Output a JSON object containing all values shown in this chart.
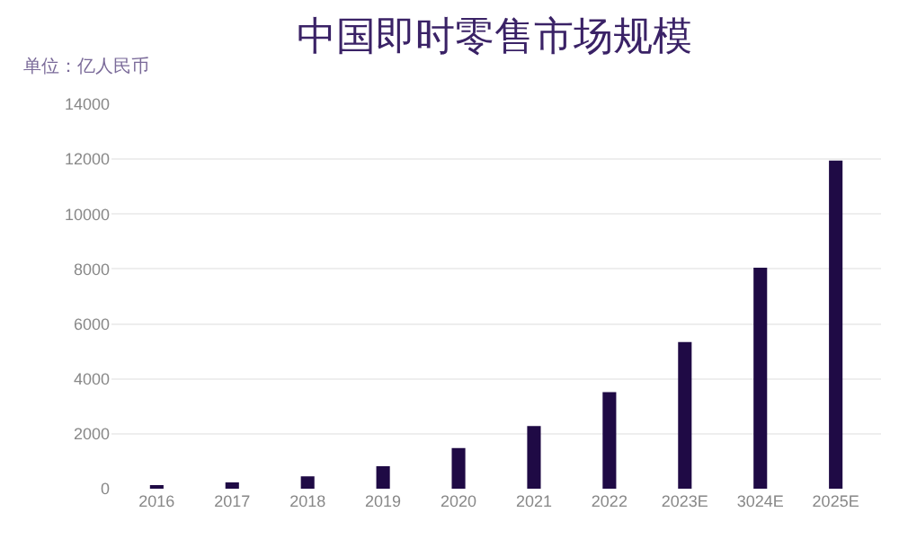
{
  "chart_data": {
    "type": "bar",
    "title": "中国即时零售市场规模",
    "ylabel": "单位：亿人民币",
    "categories": [
      "2016",
      "2017",
      "2018",
      "2019",
      "2020",
      "2021",
      "2022",
      "2023E",
      "3024E",
      "2025E"
    ],
    "values": [
      100,
      230,
      450,
      820,
      1480,
      2280,
      3520,
      5340,
      8050,
      11950
    ],
    "color": "#1f0a45",
    "ylim": [
      0,
      14000
    ],
    "yticks": [
      0,
      2000,
      4000,
      6000,
      8000,
      10000,
      12000,
      14000
    ],
    "grid": "y"
  }
}
